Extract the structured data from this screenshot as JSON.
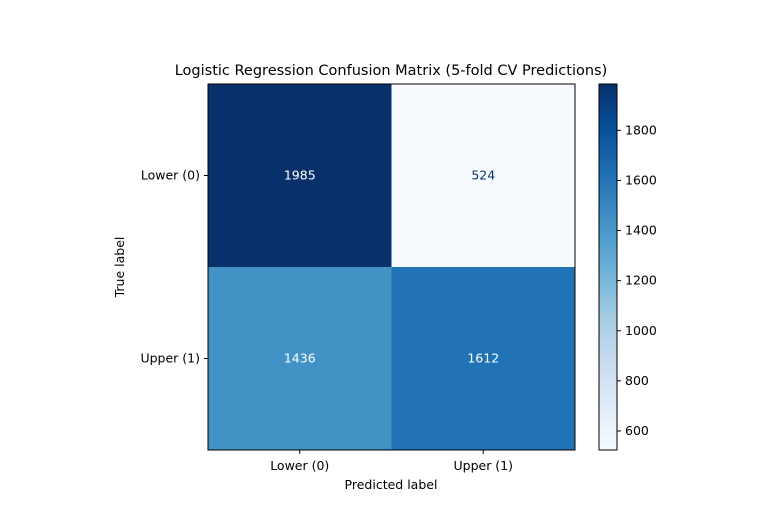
{
  "chart_data": {
    "type": "heatmap",
    "title": "Logistic Regression Confusion Matrix (5-fold CV Predictions)",
    "xlabel": "Predicted label",
    "ylabel": "True label",
    "x_categories": [
      "Lower (0)",
      "Upper (1)"
    ],
    "y_categories": [
      "Lower (0)",
      "Upper (1)"
    ],
    "values": [
      [
        1985,
        524
      ],
      [
        1436,
        1612
      ]
    ],
    "colormap": "Blues",
    "colorbar": {
      "range": [
        524,
        1985
      ],
      "ticks": [
        600,
        800,
        1000,
        1200,
        1400,
        1600,
        1800
      ]
    }
  }
}
